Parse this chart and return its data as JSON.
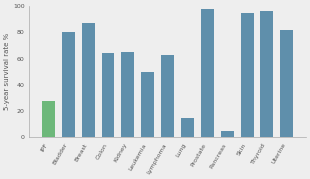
{
  "categories": [
    "IPF",
    "Bladder",
    "Breast",
    "Colon",
    "Kidney",
    "Leukemia",
    "Lymphoma",
    "Lung",
    "Prostate",
    "Pancreas",
    "Skin",
    "Thyroid",
    "Uterine"
  ],
  "values": [
    28,
    80,
    87,
    64,
    65,
    50,
    63,
    15,
    98,
    5,
    95,
    96,
    82
  ],
  "bar_colors": [
    "#6db87a",
    "#5f8fab",
    "#5f8fab",
    "#5f8fab",
    "#5f8fab",
    "#5f8fab",
    "#5f8fab",
    "#5f8fab",
    "#5f8fab",
    "#5f8fab",
    "#5f8fab",
    "#5f8fab",
    "#5f8fab"
  ],
  "ylabel": "5-year survival rate %",
  "ylim": [
    0,
    100
  ],
  "yticks": [
    0,
    20,
    40,
    60,
    80,
    100
  ],
  "background_color": "#eeeeee",
  "bar_edge_color": "none",
  "ylabel_fontsize": 5.0,
  "tick_fontsize": 4.5,
  "label_rotation": 60
}
